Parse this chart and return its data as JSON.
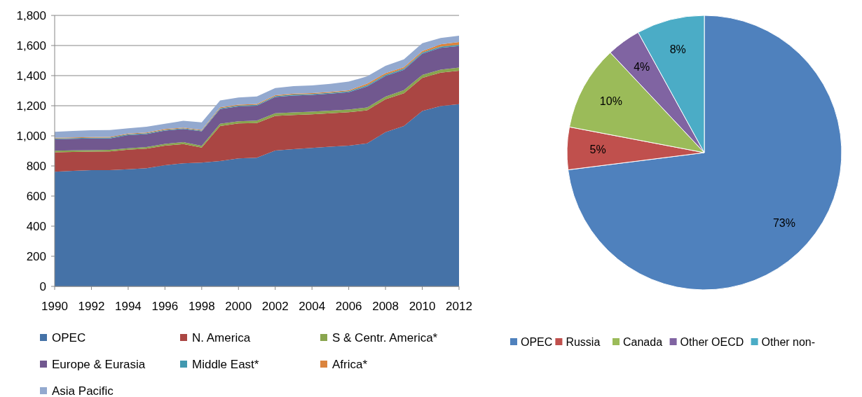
{
  "chart_data": [
    {
      "type": "area",
      "stacked": true,
      "x": [
        1990,
        1991,
        1992,
        1993,
        1994,
        1995,
        1996,
        1997,
        1998,
        1999,
        2000,
        2001,
        2002,
        2003,
        2004,
        2005,
        2006,
        2007,
        2008,
        2009,
        2010,
        2011,
        2012
      ],
      "xlim": [
        1990,
        2012
      ],
      "xticks": [
        1990,
        1992,
        1994,
        1996,
        1998,
        2000,
        2002,
        2004,
        2006,
        2008,
        2010,
        2012
      ],
      "ylim": [
        0,
        1800
      ],
      "yticks": [
        0,
        {
          "value": 200,
          "label": "200"
        },
        {
          "value": 400,
          "label": "400"
        },
        {
          "value": 600,
          "label": "600"
        },
        {
          "value": 800,
          "label": "800"
        },
        {
          "value": 1000,
          "label": "1,000"
        },
        {
          "value": 1200,
          "label": "1,200"
        },
        {
          "value": 1400,
          "label": "1,400"
        },
        {
          "value": 1600,
          "label": "1,600"
        },
        {
          "value": 1800,
          "label": "1,800"
        }
      ],
      "grid": "y",
      "legend": "bottom",
      "series": [
        {
          "name": "OPEC",
          "color": "#4572a7",
          "values": [
            762,
            768,
            772,
            772,
            778,
            785,
            805,
            818,
            822,
            832,
            850,
            855,
            902,
            912,
            920,
            928,
            935,
            950,
            1025,
            1065,
            1165,
            1198,
            1210
          ]
        },
        {
          "name": "N. America",
          "color": "#aa4643",
          "values": [
            129,
            125,
            123,
            125,
            130,
            130,
            130,
            127,
            100,
            233,
            232,
            230,
            231,
            226,
            223,
            222,
            222,
            220,
            218,
            218,
            220,
            222,
            222
          ]
        },
        {
          "name": "S & Centr. America*",
          "color": "#89a54e",
          "values": [
            10,
            10,
            10,
            10,
            10,
            11,
            12,
            13,
            12,
            15,
            15,
            16,
            17,
            18,
            18,
            18,
            18,
            18,
            18,
            20,
            20,
            20,
            22
          ]
        },
        {
          "name": "Europe & Eurasia",
          "color": "#71588f",
          "values": [
            76,
            77,
            77,
            76,
            87,
            86,
            88,
            87,
            96,
            98,
            98,
            99,
            108,
            112,
            111,
            112,
            115,
            140,
            137,
            135,
            140,
            145,
            143
          ]
        },
        {
          "name": "Middle East*",
          "color": "#4198af",
          "values": [
            5,
            5,
            5,
            5,
            5,
            5,
            5,
            5,
            5,
            6,
            6,
            6,
            6,
            6,
            6,
            6,
            6,
            8,
            8,
            8,
            8,
            8,
            8
          ]
        },
        {
          "name": "Africa*",
          "color": "#db843d",
          "values": [
            5,
            5,
            5,
            5,
            5,
            5,
            5,
            5,
            5,
            6,
            6,
            6,
            6,
            6,
            6,
            6,
            6,
            10,
            10,
            10,
            10,
            15,
            18
          ]
        },
        {
          "name": "Asia Pacific",
          "color": "#93a9cf",
          "values": [
            40,
            42,
            45,
            45,
            35,
            38,
            35,
            45,
            50,
            45,
            48,
            50,
            48,
            50,
            51,
            53,
            58,
            49,
            49,
            52,
            52,
            42,
            42
          ]
        }
      ]
    },
    {
      "type": "pie",
      "categories": [
        "OPEC",
        "Russia",
        "Canada",
        "Other OECD",
        "Other non-"
      ],
      "values": [
        73,
        5,
        10,
        4,
        8
      ],
      "colors": [
        "#4f81bd",
        "#c0504d",
        "#9bbb59",
        "#8064a2",
        "#4bacc6"
      ],
      "value_labels": [
        "73%",
        "5%",
        "10%",
        "4%",
        "8%"
      ],
      "legend": "bottom"
    }
  ]
}
